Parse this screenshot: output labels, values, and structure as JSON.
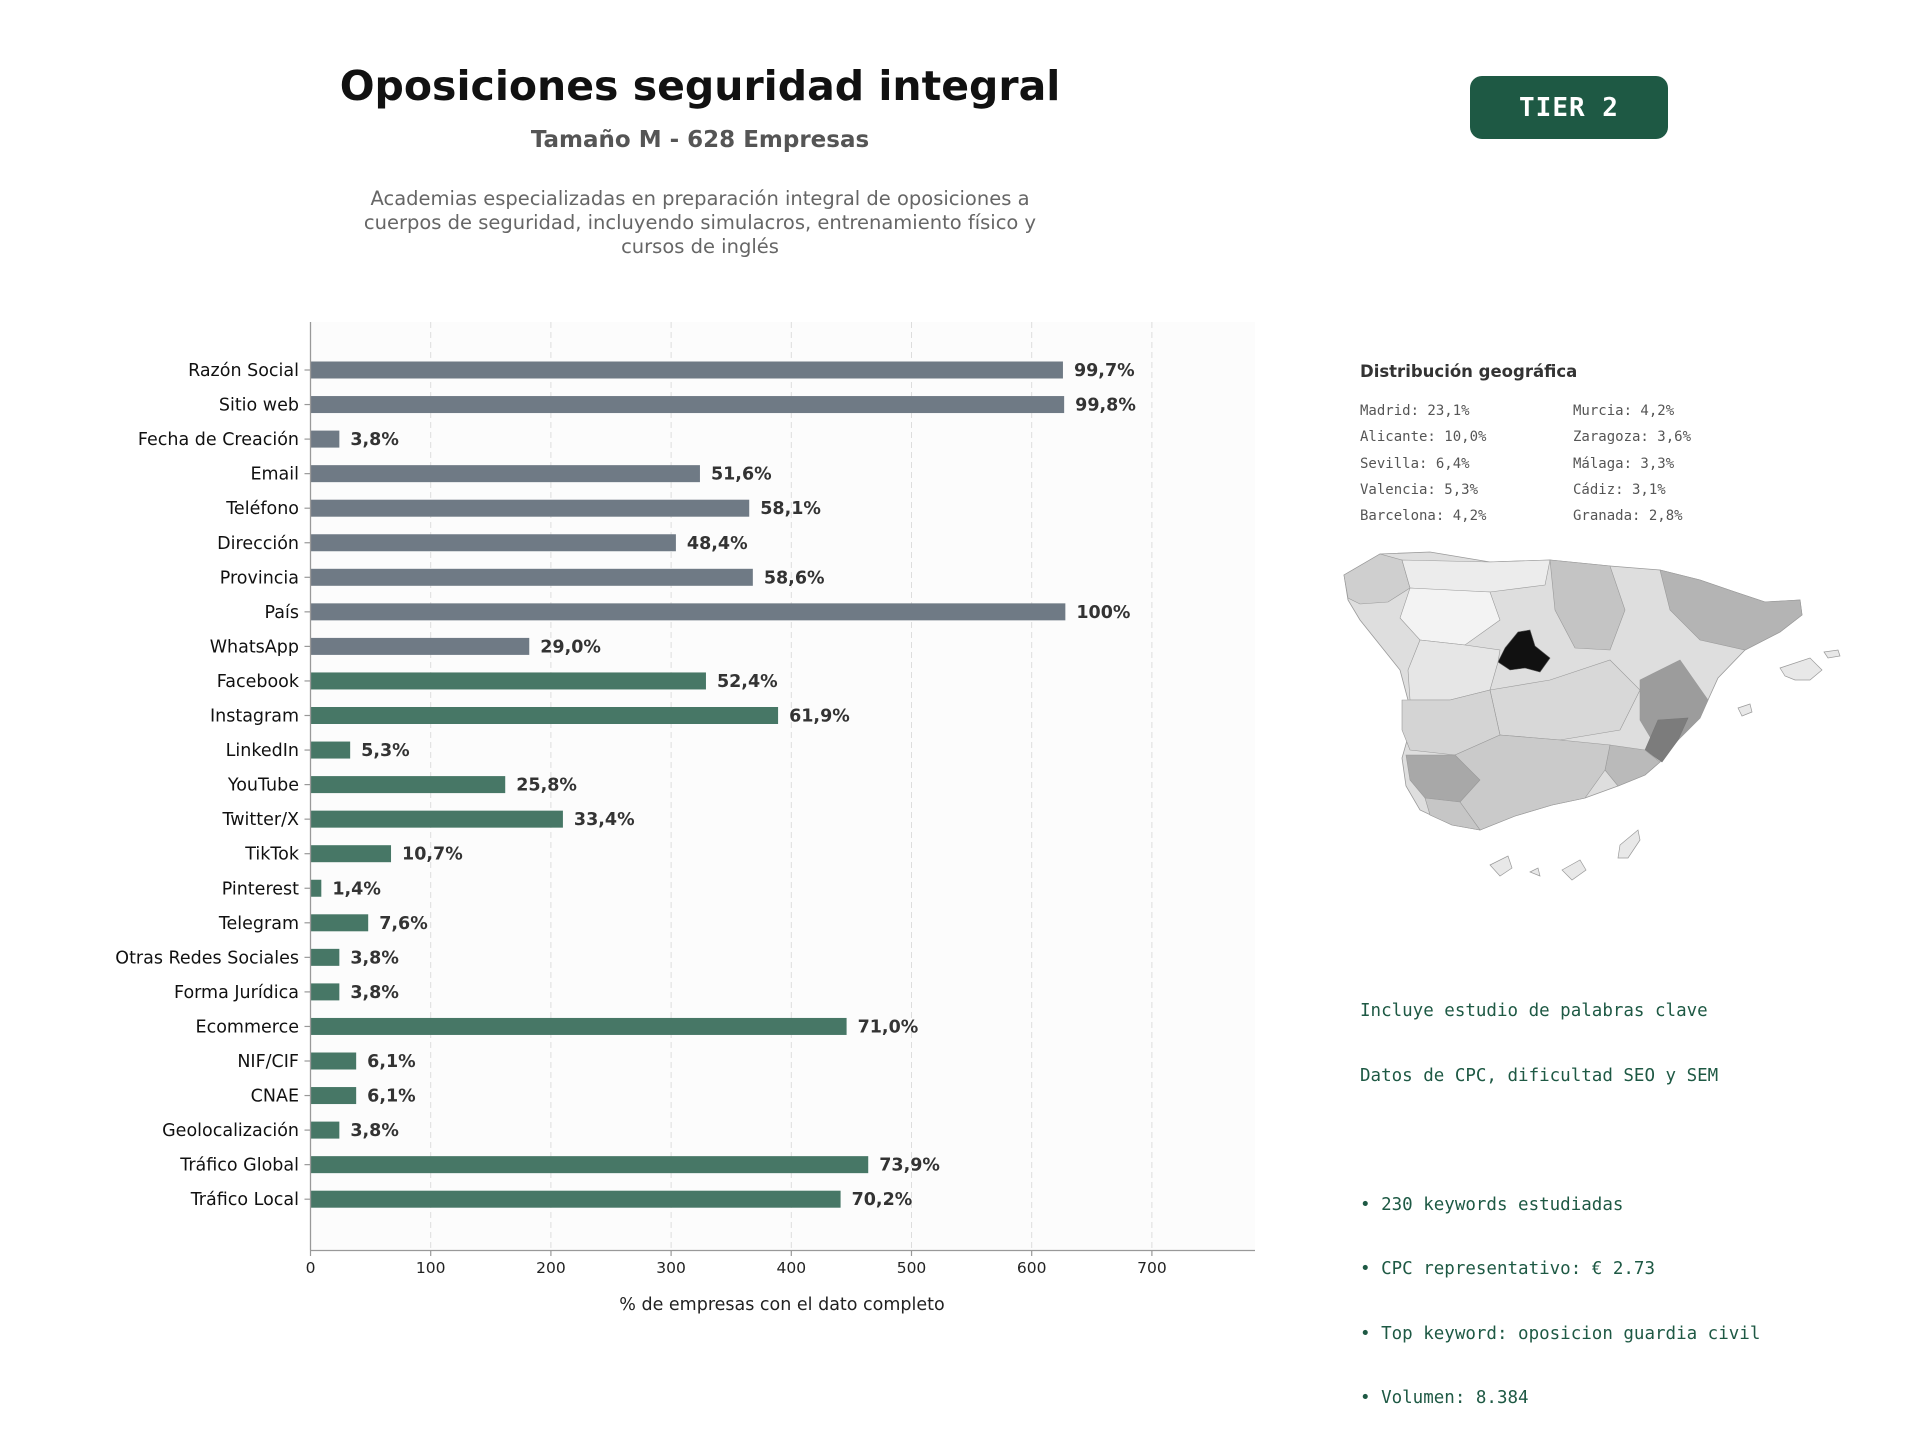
{
  "header": {
    "title": "Oposiciones seguridad integral",
    "subtitle": "Tamaño M - 628 Empresas",
    "description": "Academias especializadas en preparación integral de oposiciones a cuerpos de seguridad, incluyendo simulacros, entrenamiento físico y cursos de inglés",
    "tier_label": "TIER 2"
  },
  "chart_data": {
    "type": "bar",
    "orientation": "horizontal",
    "xlabel": "% de empresas con el dato completo",
    "ylabel": "",
    "xlim": [
      0,
      785
    ],
    "xticks": [
      0,
      100,
      200,
      300,
      400,
      500,
      600,
      700
    ],
    "grid": "vertical dashed",
    "categories": [
      "Razón Social",
      "Sitio web",
      "Fecha de Creación",
      "Email",
      "Teléfono",
      "Dirección",
      "Provincia",
      "País",
      "WhatsApp",
      "Facebook",
      "Instagram",
      "LinkedIn",
      "YouTube",
      "Twitter/X",
      "TikTok",
      "Pinterest",
      "Telegram",
      "Otras Redes Sociales",
      "Forma Jurídica",
      "Ecommerce",
      "NIF/CIF",
      "CNAE",
      "Geolocalización",
      "Tráfico Global",
      "Tráfico Local"
    ],
    "values": [
      626,
      627,
      24,
      324,
      365,
      304,
      368,
      628,
      182,
      329,
      389,
      33,
      162,
      210,
      67,
      9,
      48,
      24,
      24,
      446,
      38,
      38,
      24,
      464,
      441
    ],
    "labels": [
      "99,7%",
      "99,8%",
      "3,8%",
      "51,6%",
      "58,1%",
      "48,4%",
      "58,6%",
      "100%",
      "29,0%",
      "52,4%",
      "61,9%",
      "5,3%",
      "25,8%",
      "33,4%",
      "10,7%",
      "1,4%",
      "7,6%",
      "3,8%",
      "3,8%",
      "71,0%",
      "6,1%",
      "6,1%",
      "3,8%",
      "73,9%",
      "70,2%"
    ],
    "groups": [
      "contact",
      "contact",
      "contact",
      "contact",
      "contact",
      "contact",
      "contact",
      "contact",
      "contact",
      "social",
      "social",
      "social",
      "social",
      "social",
      "social",
      "social",
      "social",
      "social",
      "other",
      "other",
      "other",
      "other",
      "other",
      "other",
      "other"
    ],
    "colors": {
      "contact": "#6f7a85",
      "social": "#477766",
      "other": "#477766"
    }
  },
  "geo": {
    "title": "Distribución geográfica",
    "items": [
      "Madrid: 23,1%",
      "Murcia: 4,2%",
      "Alicante: 10,0%",
      "Zaragoza: 3,6%",
      "Sevilla: 6,4%",
      "Málaga: 3,3%",
      "Valencia: 5,3%",
      "Cádiz: 3,1%",
      "Barcelona: 4,2%",
      "Granada: 2,8%"
    ]
  },
  "keywords": {
    "line1": "Incluye estudio de palabras clave",
    "line2": "Datos de CPC, dificultad SEO y SEM",
    "bullets": [
      "• 230 keywords estudiadas",
      "• CPC representativo: € 2.73",
      "• Top keyword: oposicion guardia civil",
      "• Volumen: 8.384"
    ]
  }
}
